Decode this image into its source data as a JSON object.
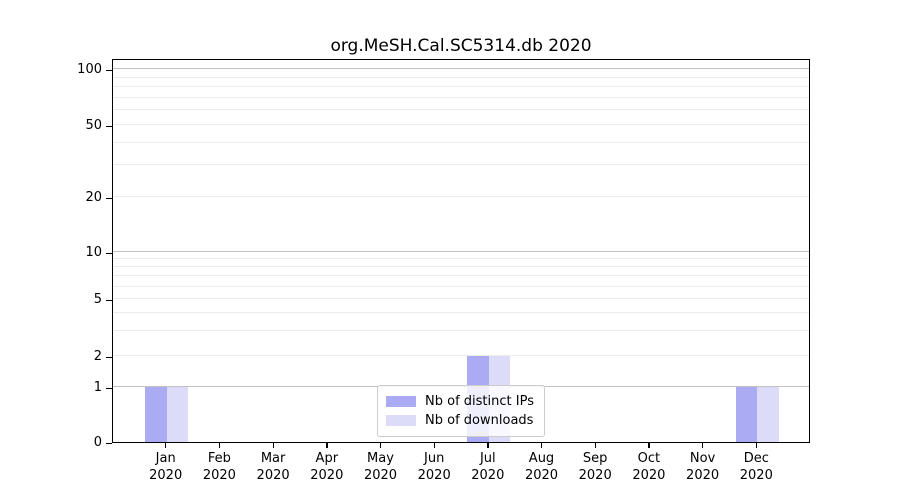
{
  "chart_data": {
    "type": "bar",
    "title": "org.MeSH.Cal.SC5314.db 2020",
    "x_tick_months": [
      "Jan",
      "Feb",
      "Mar",
      "Apr",
      "May",
      "Jun",
      "Jul",
      "Aug",
      "Sep",
      "Oct",
      "Nov",
      "Dec"
    ],
    "x_tick_year": "2020",
    "series": [
      {
        "name": "Nb of distinct IPs",
        "color": "#aaabf2",
        "values": [
          1,
          0,
          0,
          0,
          0,
          0,
          2,
          0,
          0,
          0,
          0,
          1
        ]
      },
      {
        "name": "Nb of downloads",
        "color": "#dcdcf8",
        "values": [
          1,
          0,
          0,
          0,
          0,
          0,
          2,
          0,
          0,
          0,
          0,
          1
        ]
      }
    ],
    "y_ticks": [
      0,
      1,
      2,
      5,
      10,
      20,
      50,
      100
    ],
    "y_minor_gridlines": [
      2,
      3,
      4,
      5,
      6,
      7,
      8,
      9,
      20,
      30,
      40,
      50,
      60,
      70,
      80,
      90
    ],
    "y_major_gridlines": [
      1,
      10,
      100
    ],
    "yscale": "symlog",
    "ylim": [
      0,
      115
    ],
    "grid": "horizontal",
    "legend_position": "lower center",
    "colors": {
      "grid_major": "#c2c2c2",
      "grid_minor": "#ebebeb",
      "spine": "#000000",
      "background": "#ffffff"
    }
  }
}
